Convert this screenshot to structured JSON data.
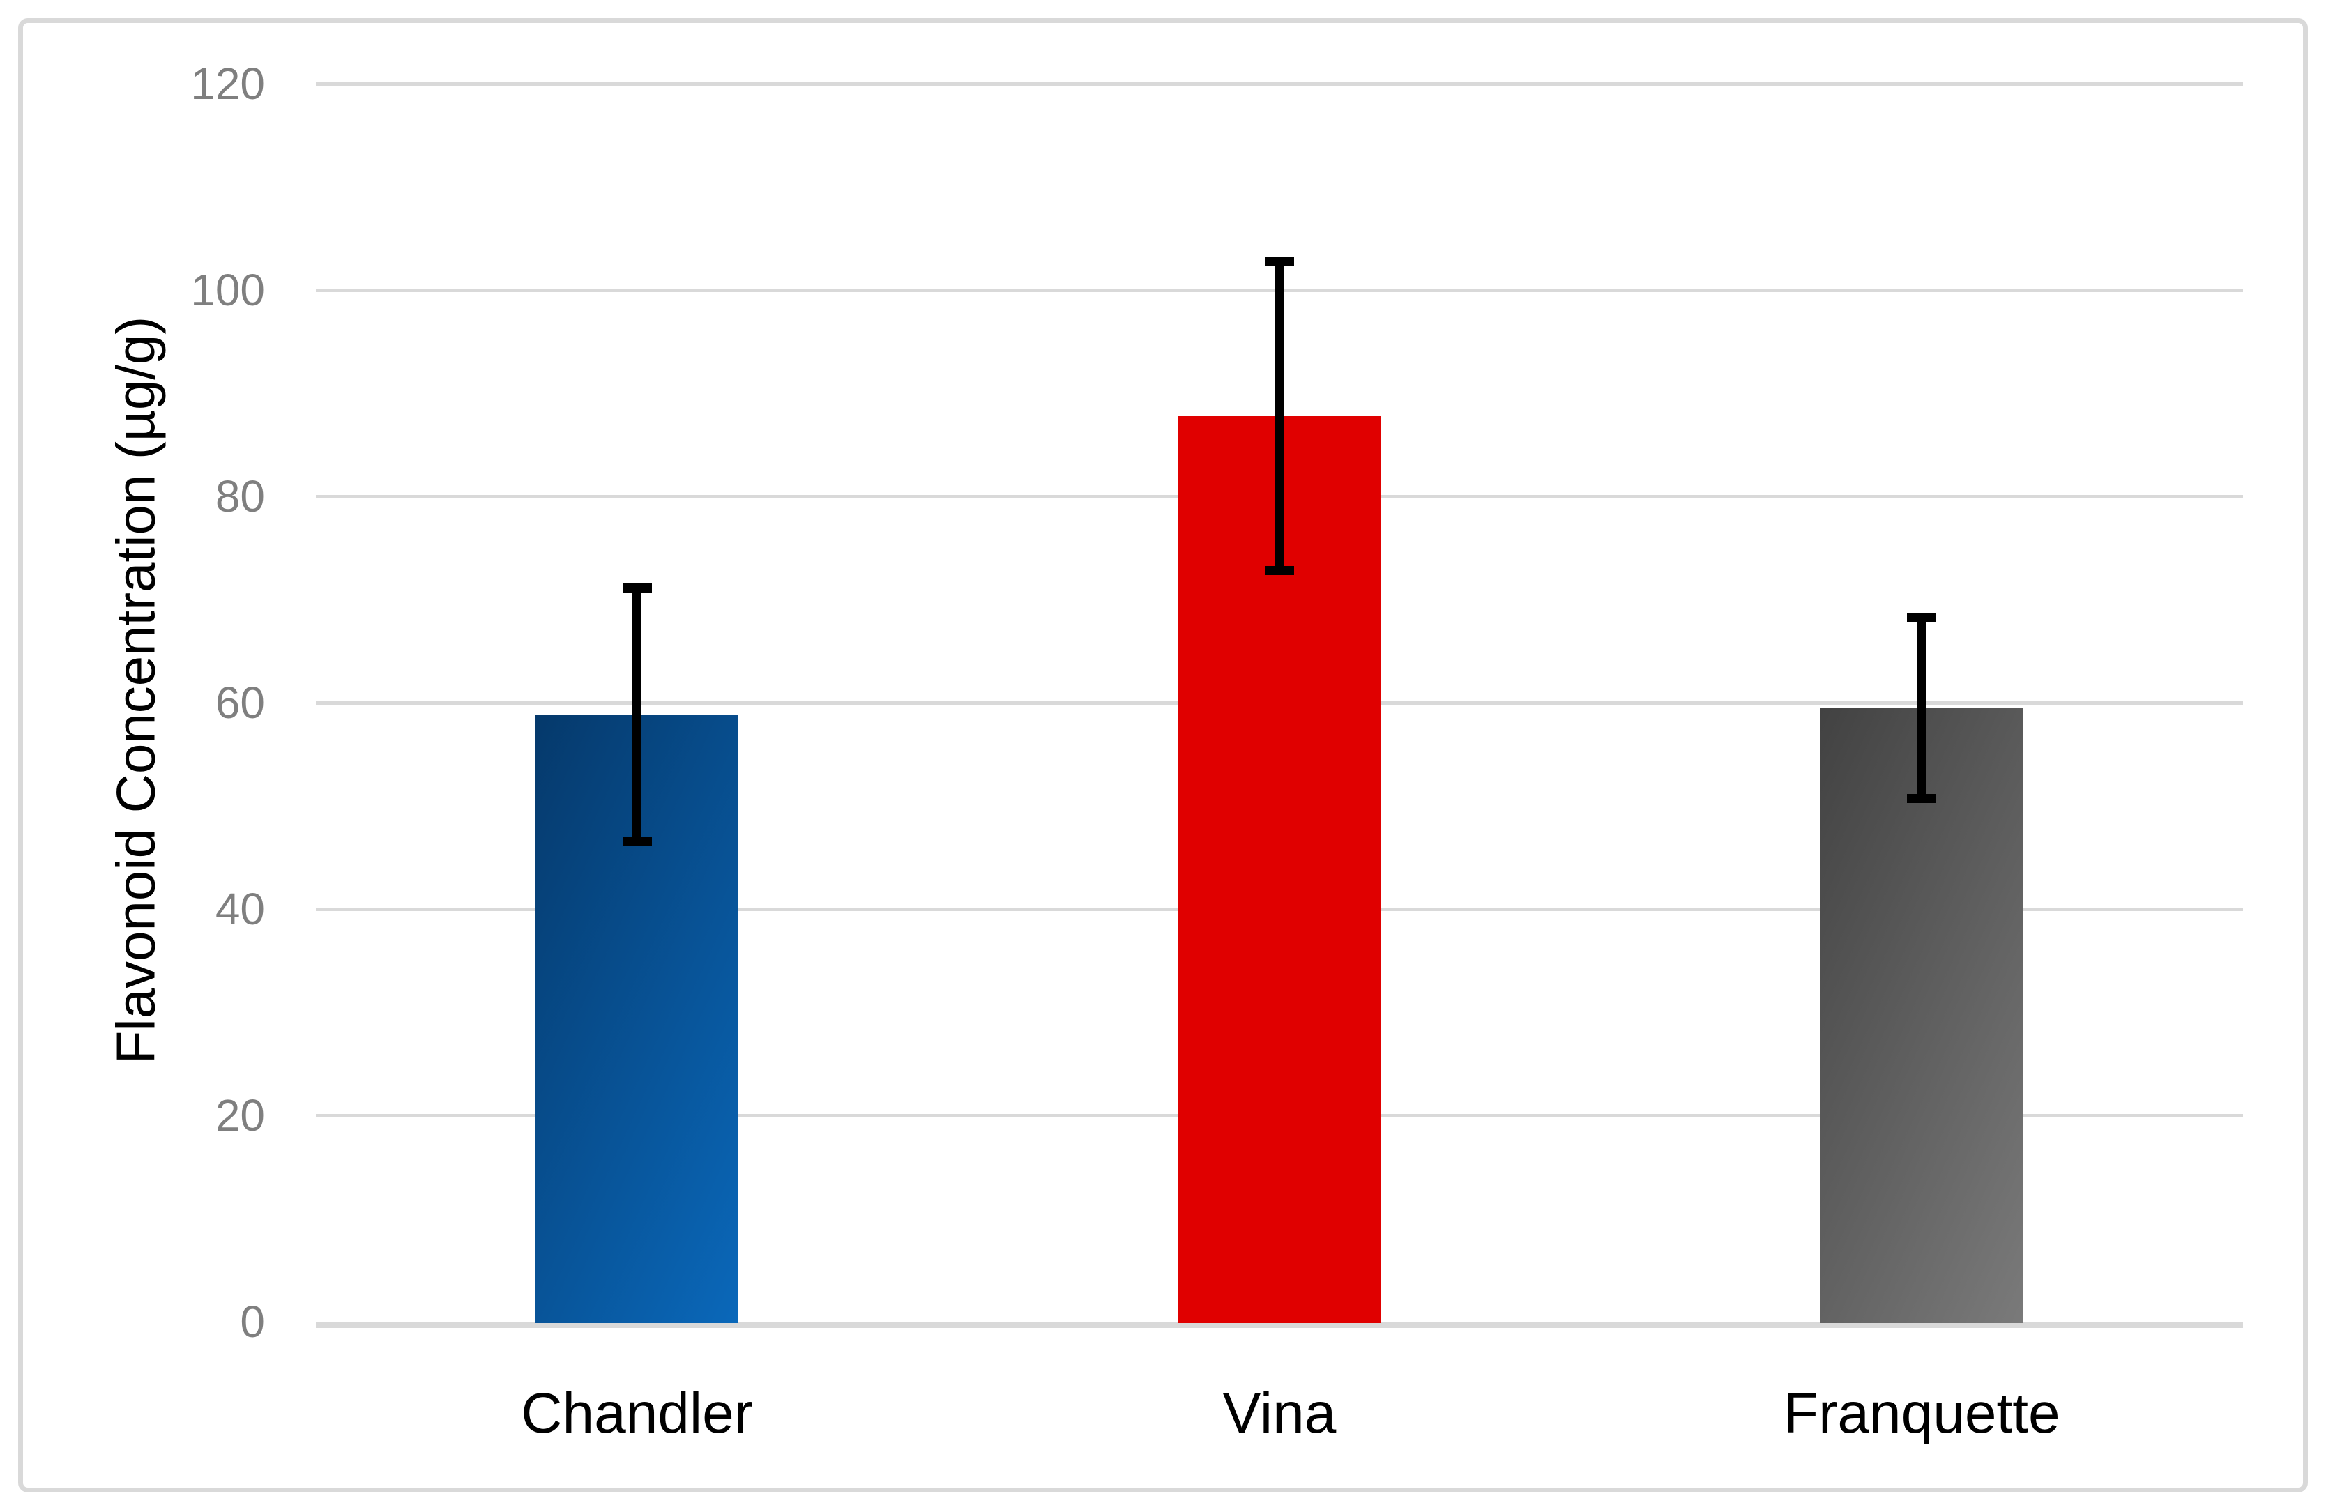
{
  "chart_data": {
    "type": "bar",
    "title": "",
    "categories": [
      "Chandler",
      "Vina",
      "Franquette"
    ],
    "series": [
      {
        "name": "Flavonoid Concentration",
        "values": [
          58.8,
          87.8,
          59.5
        ],
        "errors": [
          12.3,
          15.0,
          8.8
        ]
      }
    ],
    "xlabel": "",
    "ylabel": "Flavonoid Concentration (µg/g)",
    "ylim": [
      0,
      120
    ],
    "yticks": [
      0,
      20,
      40,
      60,
      80,
      100,
      120
    ],
    "ytick_labels": [
      "0",
      "20",
      "40",
      "60",
      "80",
      "100",
      "120"
    ],
    "grid": true,
    "legend": false,
    "bar_styles": [
      {
        "fill": "gradient",
        "from": "#05396b",
        "to": "#0a68ba"
      },
      {
        "fill": "solid",
        "from": "#e00000",
        "to": "#e00000"
      },
      {
        "fill": "gradient",
        "from": "#424242",
        "to": "#7a7a7a"
      }
    ],
    "colors": {
      "gridline": "#d9d9d9",
      "axis_line": "#d9d9d9",
      "tick_label": "#7f7f7f",
      "category_label": "#000000",
      "error_bar": "#000000",
      "chart_border": "#d9d9d9",
      "background": "#ffffff"
    }
  }
}
